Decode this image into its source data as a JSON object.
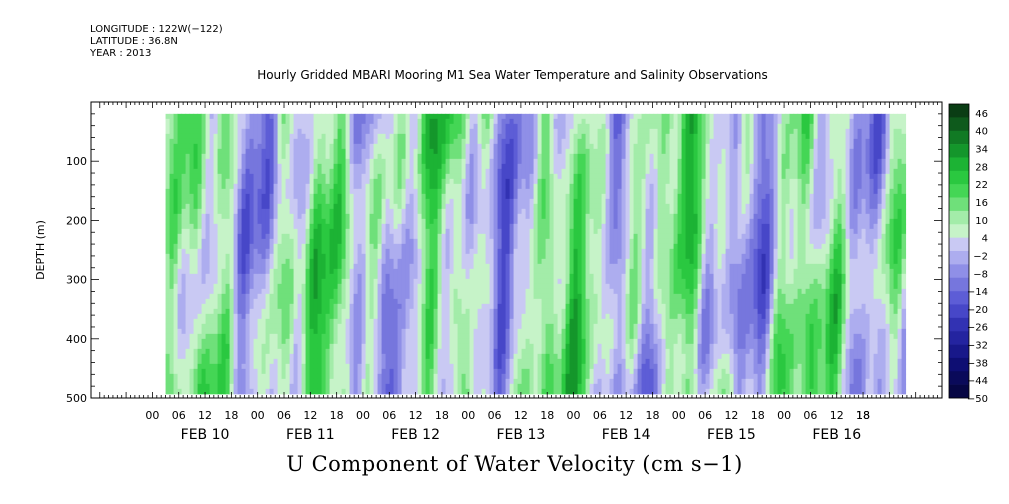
{
  "header": {
    "longitude": "LONGITUDE : 122W(−122)",
    "latitude": "LATITUDE : 36.8N",
    "year": "YEAR : 2013"
  },
  "chart_data": {
    "type": "heatmap",
    "title": "Hourly Gridded MBARI Mooring M1 Sea Water Temperature and Salinity Observations",
    "xlabel": "U Component of Water Velocity (cm s−1)",
    "ylabel": "DEPTH (m)",
    "y_axis": {
      "range": [
        0,
        500
      ],
      "inverted": true,
      "ticks": [
        100,
        200,
        300,
        400,
        500
      ]
    },
    "x_axis": {
      "hour_ticks": [
        "00",
        "06",
        "12",
        "18",
        "00",
        "06",
        "12",
        "18",
        "00",
        "06",
        "12",
        "18",
        "00",
        "06",
        "12",
        "18",
        "00",
        "06",
        "12",
        "18",
        "00",
        "06",
        "12",
        "18",
        "00",
        "06",
        "12",
        "18",
        "18"
      ],
      "day_labels": [
        "FEB 10",
        "FEB 11",
        "FEB 12",
        "FEB 13",
        "FEB 14",
        "FEB 15",
        "FEB 16"
      ],
      "range_hours": [
        -14,
        180
      ]
    },
    "data_extent": {
      "start_hour_after_feb10_00": 3,
      "end_hour_after_feb10_00": 171,
      "depth_min": 20,
      "depth_max": 485
    },
    "colorbar": {
      "labels": [
        46,
        40,
        34,
        28,
        22,
        16,
        10,
        4,
        -2,
        -8,
        -14,
        -20,
        -26,
        -32,
        -38,
        -44,
        -50
      ],
      "colors": [
        "#0a3d14",
        "#0e5a1c",
        "#117a24",
        "#14962b",
        "#1cb334",
        "#2ac840",
        "#44d655",
        "#6fe07a",
        "#a3eca9",
        "#c6f3c8",
        "#c9c9f3",
        "#adadef",
        "#8f8fe7",
        "#7676dd",
        "#5d5dd6",
        "#4747c8",
        "#3232b3",
        "#2424a0",
        "#18188a",
        "#0e0e73",
        "#0a0a5a",
        "#060644"
      ]
    },
    "values_note_visible": ""
  }
}
